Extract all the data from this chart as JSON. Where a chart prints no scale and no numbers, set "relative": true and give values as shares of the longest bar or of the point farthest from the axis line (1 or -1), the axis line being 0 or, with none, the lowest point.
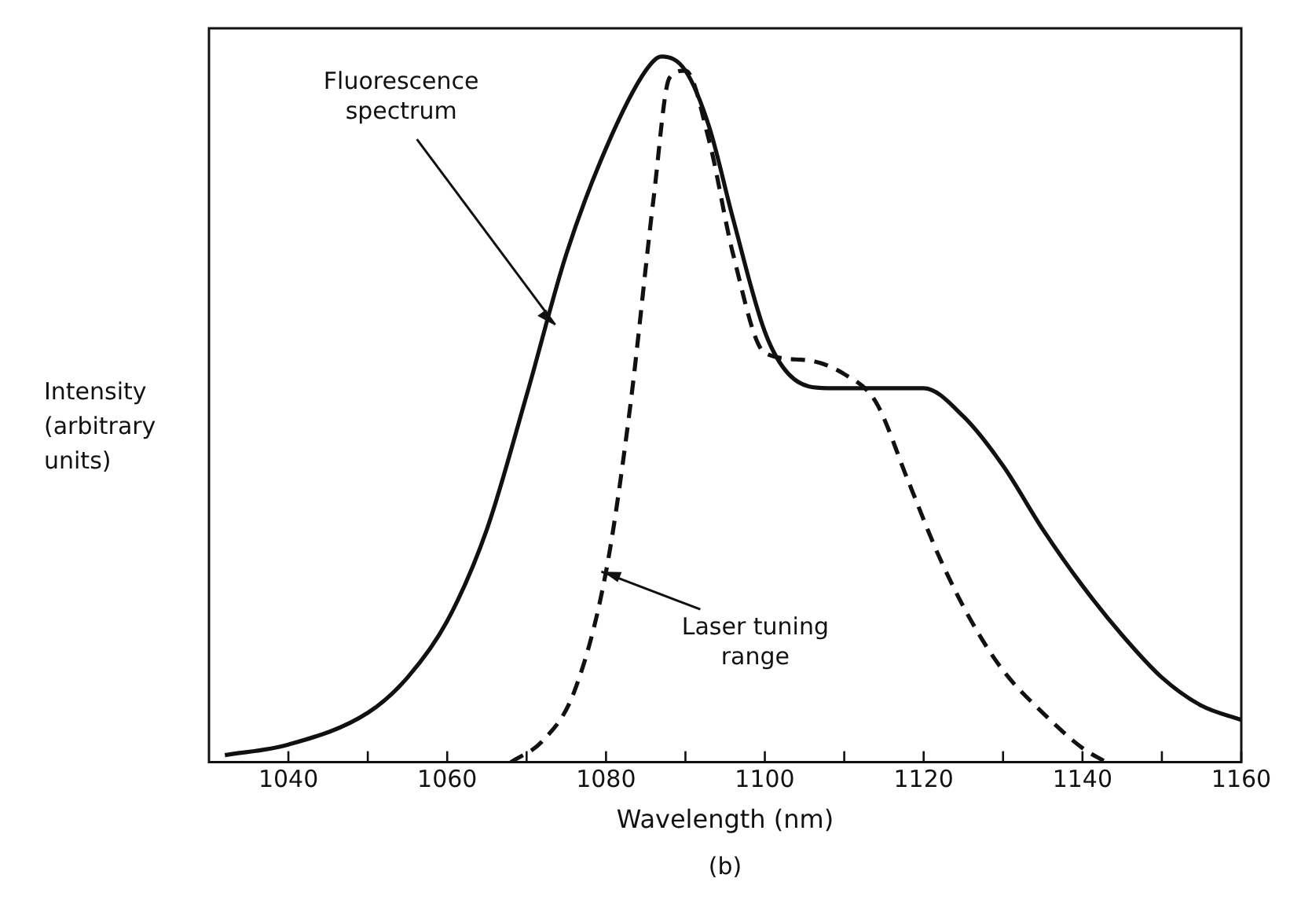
{
  "chart_data": {
    "type": "line",
    "xlabel": "Wavelength (nm)",
    "ylabel": "Intensity (arbitrary units)",
    "relative": true,
    "xlim": [
      1030,
      1160
    ],
    "xticks": [
      1040,
      {
        "value": 1050,
        "label": null
      },
      1060,
      {
        "value": 1070,
        "label": null
      },
      1080,
      {
        "value": 1090,
        "label": null
      },
      1100,
      {
        "value": 1110,
        "label": null
      },
      1120,
      {
        "value": 1130,
        "label": null
      },
      1140,
      {
        "value": 1150,
        "label": null
      },
      1160
    ],
    "grid": false,
    "legend": false,
    "marker": "none",
    "series": [
      {
        "color": "#111111",
        "line_style": "solid",
        "x": [
          1032,
          1040,
          1050,
          1055,
          1060,
          1065,
          1070,
          1075,
          1080,
          1085,
          1087,
          1090,
          1093,
          1096,
          1100,
          1103,
          1108,
          1115,
          1120,
          1125,
          1130,
          1135,
          1140,
          1145,
          1150,
          1155,
          1160
        ],
        "values": [
          0.01,
          0.025,
          0.07,
          0.12,
          0.2,
          0.33,
          0.52,
          0.72,
          0.87,
          0.98,
          1.0,
          0.98,
          0.9,
          0.77,
          0.61,
          0.55,
          0.53,
          0.53,
          0.53,
          0.49,
          0.42,
          0.33,
          0.25,
          0.18,
          0.12,
          0.08,
          0.06
        ]
      },
      {
        "color": "#111111",
        "line_style": "dashed",
        "x": [
          1068,
          1072,
          1076,
          1080,
          1083,
          1086,
          1088,
          1090,
          1093,
          1096,
          1100,
          1105,
          1110,
          1114,
          1118,
          1122,
          1126,
          1130,
          1135,
          1140,
          1143
        ],
        "values": [
          0,
          0.03,
          0.1,
          0.27,
          0.5,
          0.8,
          0.97,
          0.98,
          0.88,
          0.72,
          0.58,
          0.57,
          0.55,
          0.51,
          0.4,
          0.29,
          0.2,
          0.13,
          0.07,
          0.02,
          0
        ]
      }
    ],
    "annotations": [
      {
        "text": "Fluorescence spectrum",
        "x": 1073,
        "y": 0.62
      },
      {
        "text": "Laser tuning range",
        "x": 1080,
        "y": 0.27
      },
      "(b)"
    ]
  }
}
